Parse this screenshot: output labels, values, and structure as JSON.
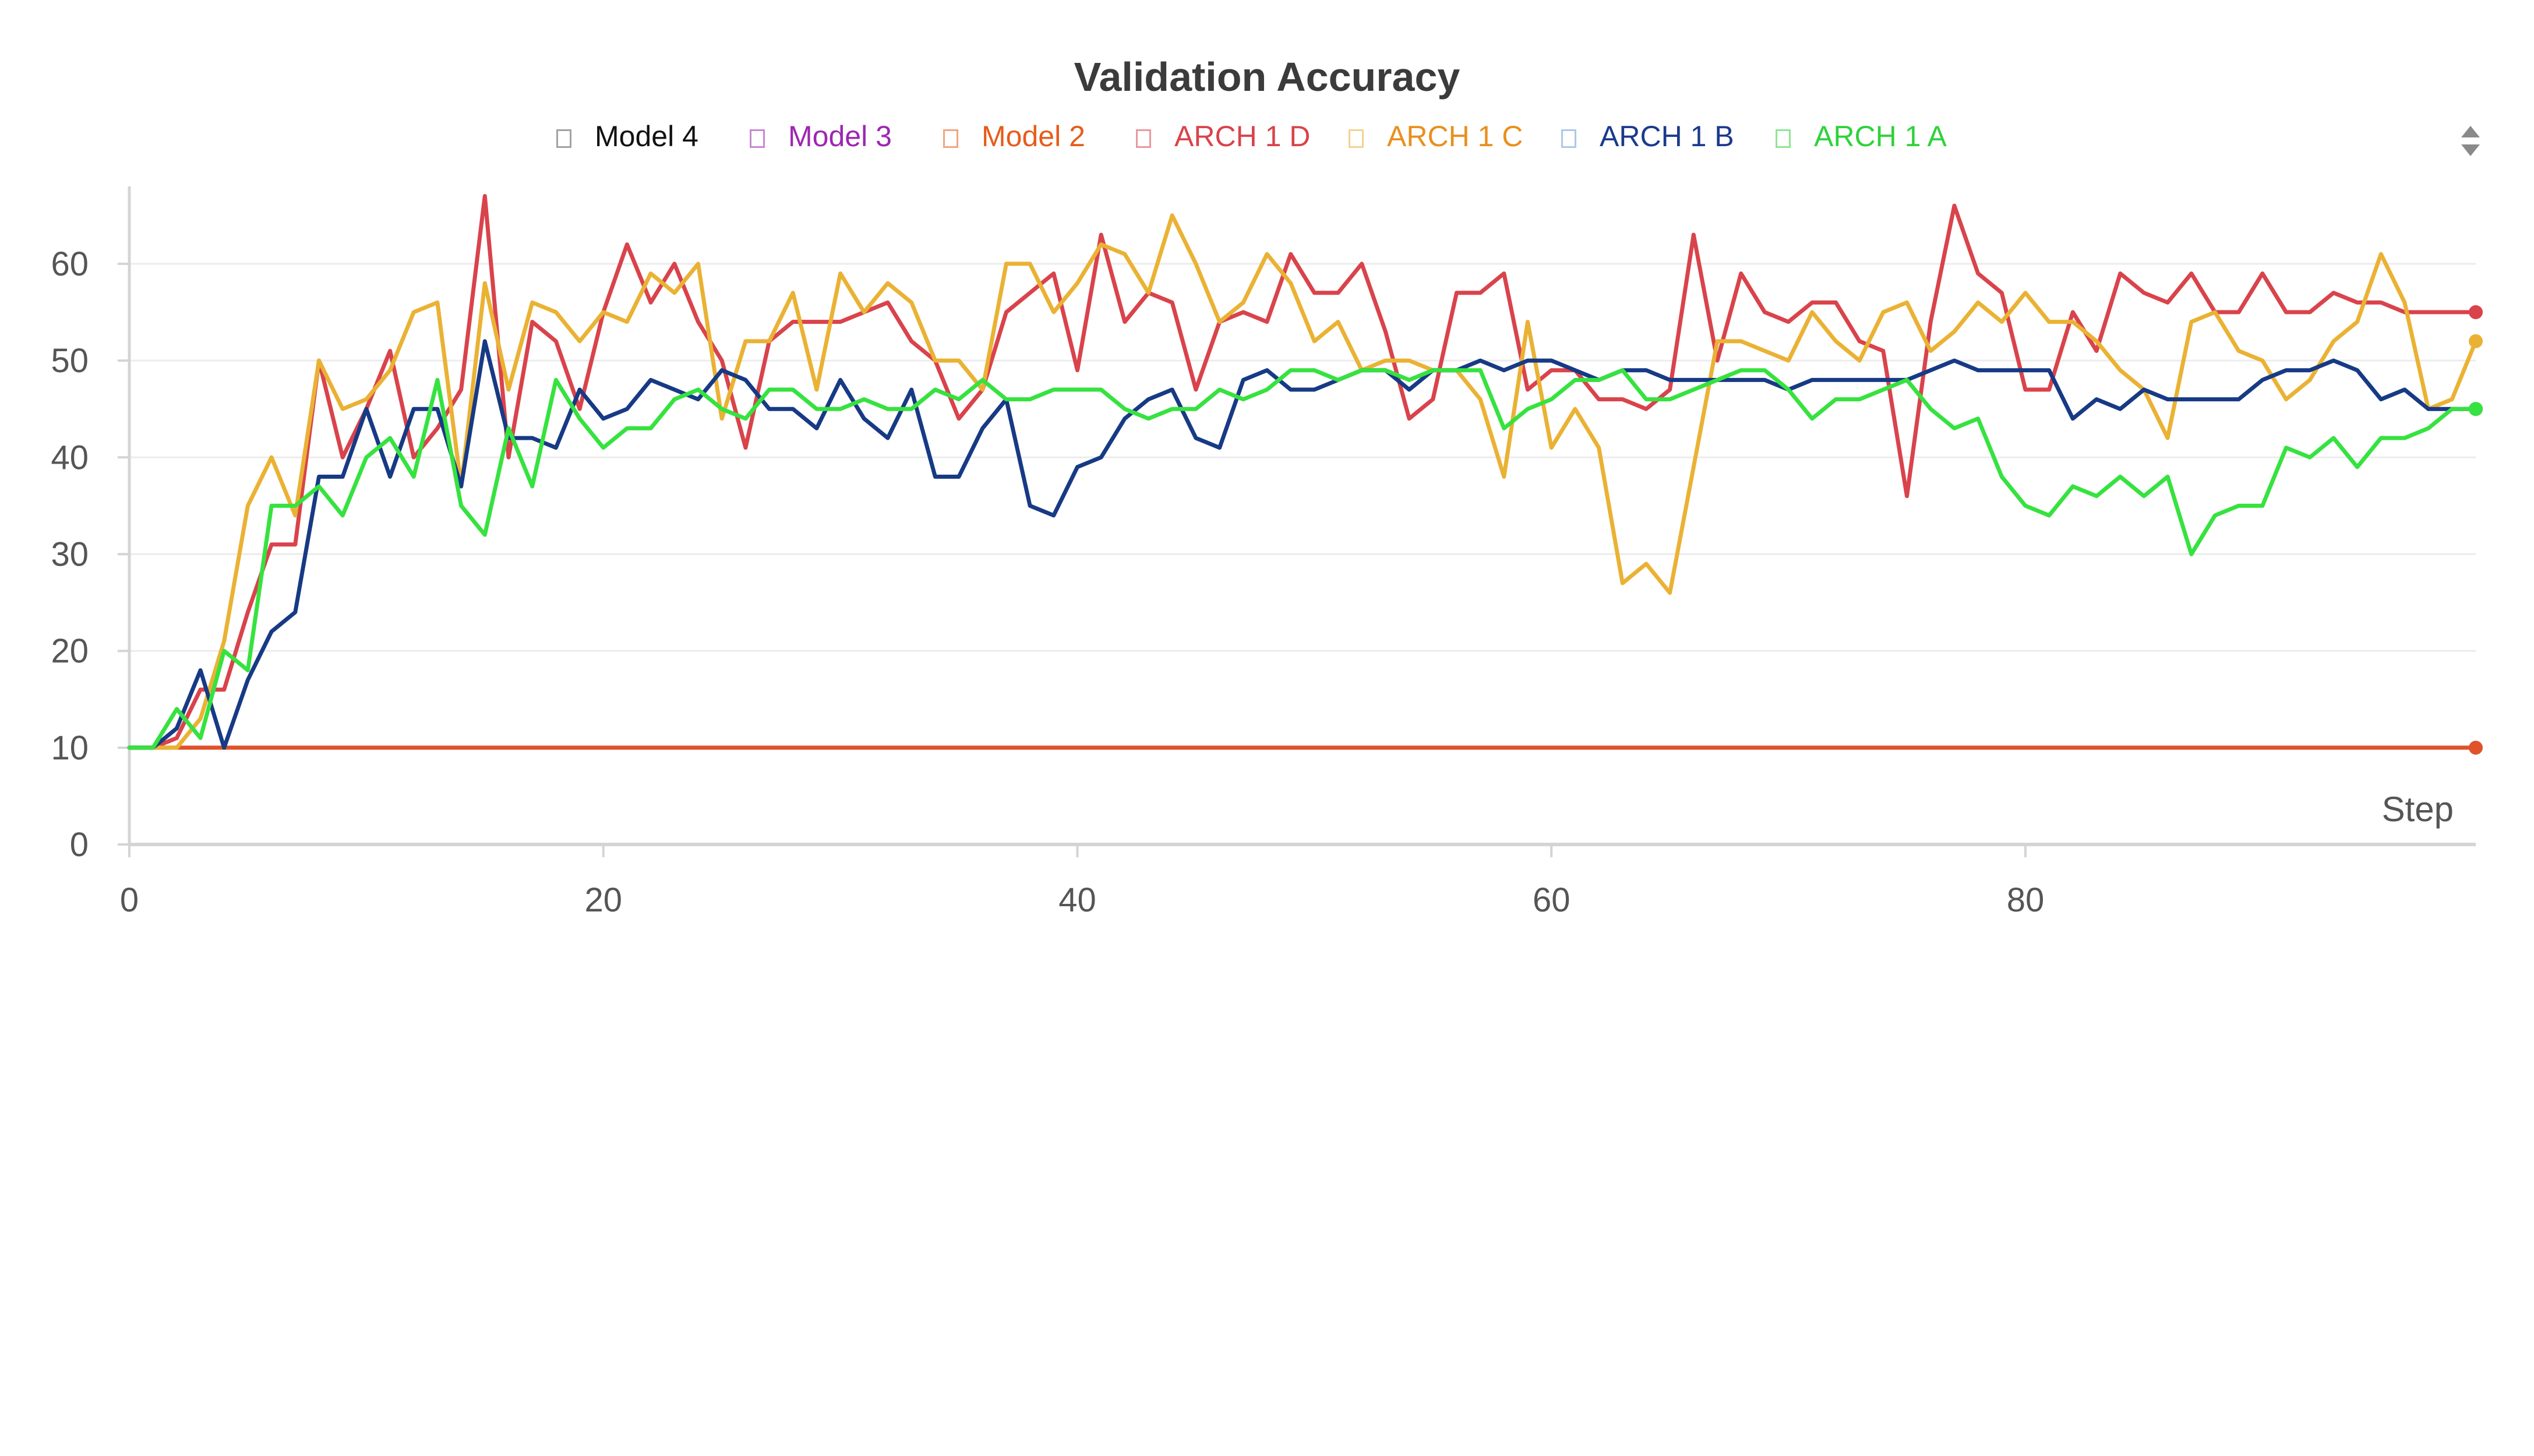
{
  "chart_data": {
    "type": "line",
    "title": "Validation Accuracy",
    "xlabel": "Step",
    "ylabel": "",
    "xlim": [
      0,
      99
    ],
    "ylim": [
      0,
      68
    ],
    "x_ticks": [
      0,
      20,
      40,
      60,
      80
    ],
    "y_ticks": [
      0,
      10,
      20,
      30,
      40,
      50,
      60
    ],
    "grid": true,
    "legend_placement": "top-center",
    "legend": [
      {
        "name": "Model 4",
        "color": "#111111"
      },
      {
        "name": "Model 3",
        "color": "#9c27b0"
      },
      {
        "name": "Model 2",
        "color": "#e65c1a"
      },
      {
        "name": "ARCH 1 D",
        "color": "#d9434b"
      },
      {
        "name": "ARCH 1 C",
        "color": "#e8901e"
      },
      {
        "name": "ARCH 1 B",
        "color": "#1a3a8c"
      },
      {
        "name": "ARCH 1 A",
        "color": "#2fd23a"
      }
    ],
    "series": [
      {
        "name": "Model 2",
        "color": "#e0522a",
        "x": [
          0,
          99
        ],
        "y": [
          10,
          10
        ]
      },
      {
        "name": "ARCH 1 D",
        "color": "#d9434b",
        "x": [
          0,
          1,
          2,
          3,
          4,
          5,
          6,
          7,
          8,
          9,
          10,
          11,
          12,
          13,
          14,
          15,
          16,
          17,
          18,
          19,
          20,
          21,
          22,
          23,
          24,
          25,
          26,
          27,
          28,
          29,
          30,
          31,
          32,
          33,
          34,
          35,
          36,
          37,
          38,
          39,
          40,
          41,
          42,
          43,
          44,
          45,
          46,
          47,
          48,
          49,
          50,
          51,
          52,
          53,
          54,
          55,
          56,
          57,
          58,
          59,
          60,
          61,
          62,
          63,
          64,
          65,
          66,
          67,
          68,
          69,
          70,
          71,
          72,
          73,
          74,
          75,
          76,
          77,
          78,
          79,
          80,
          81,
          82,
          83,
          84,
          85,
          86,
          87,
          88,
          89,
          90,
          91,
          92,
          93,
          94,
          95,
          96,
          97,
          98,
          99
        ],
        "y": [
          10,
          10,
          11,
          16,
          16,
          24,
          31,
          31,
          50,
          40,
          45,
          51,
          40,
          43,
          47,
          67,
          40,
          54,
          52,
          45,
          55,
          62,
          56,
          60,
          54,
          50,
          41,
          52,
          54,
          54,
          54,
          55,
          56,
          52,
          50,
          44,
          47,
          55,
          57,
          59,
          49,
          63,
          54,
          57,
          56,
          47,
          54,
          55,
          54,
          61,
          57,
          57,
          60,
          53,
          44,
          46,
          57,
          57,
          59,
          47,
          49,
          49,
          46,
          46,
          45,
          47,
          63,
          50,
          59,
          55,
          54,
          56,
          56,
          52,
          51,
          36,
          54,
          66,
          59,
          57,
          47,
          47,
          55,
          51,
          59,
          57,
          56,
          59,
          55,
          55,
          59,
          55,
          55,
          57,
          56,
          56,
          55,
          55,
          55,
          55
        ]
      },
      {
        "name": "ARCH 1 C",
        "color": "#eab234",
        "x": [
          0,
          1,
          2,
          3,
          4,
          5,
          6,
          7,
          8,
          9,
          10,
          11,
          12,
          13,
          14,
          15,
          16,
          17,
          18,
          19,
          20,
          21,
          22,
          23,
          24,
          25,
          26,
          27,
          28,
          29,
          30,
          31,
          32,
          33,
          34,
          35,
          36,
          37,
          38,
          39,
          40,
          41,
          42,
          43,
          44,
          45,
          46,
          47,
          48,
          49,
          50,
          51,
          52,
          53,
          54,
          55,
          56,
          57,
          58,
          59,
          60,
          61,
          62,
          63,
          64,
          65,
          66,
          67,
          68,
          69,
          70,
          71,
          72,
          73,
          74,
          75,
          76,
          77,
          78,
          79,
          80,
          81,
          82,
          83,
          84,
          85,
          86,
          87,
          88,
          89,
          90,
          91,
          92,
          93,
          94,
          95,
          96,
          97,
          98,
          99
        ],
        "y": [
          10,
          10,
          10,
          13,
          21,
          35,
          40,
          34,
          50,
          45,
          46,
          49,
          55,
          56,
          37,
          58,
          47,
          56,
          55,
          52,
          55,
          54,
          59,
          57,
          60,
          44,
          52,
          52,
          57,
          47,
          59,
          55,
          58,
          56,
          50,
          50,
          47,
          60,
          60,
          55,
          58,
          62,
          61,
          57,
          65,
          60,
          54,
          56,
          61,
          58,
          52,
          54,
          49,
          50,
          50,
          49,
          49,
          46,
          38,
          54,
          41,
          45,
          41,
          27,
          29,
          26,
          39,
          52,
          52,
          51,
          50,
          55,
          52,
          50,
          55,
          56,
          51,
          53,
          56,
          54,
          57,
          54,
          54,
          52,
          49,
          47,
          42,
          54,
          55,
          51,
          50,
          46,
          48,
          52,
          54,
          61,
          56,
          45,
          46,
          52
        ]
      },
      {
        "name": "ARCH 1 B",
        "color": "#173a85",
        "x": [
          0,
          1,
          2,
          3,
          4,
          5,
          6,
          7,
          8,
          9,
          10,
          11,
          12,
          13,
          14,
          15,
          16,
          17,
          18,
          19,
          20,
          21,
          22,
          23,
          24,
          25,
          26,
          27,
          28,
          29,
          30,
          31,
          32,
          33,
          34,
          35,
          36,
          37,
          38,
          39,
          40,
          41,
          42,
          43,
          44,
          45,
          46,
          47,
          48,
          49,
          50,
          51,
          52,
          53,
          54,
          55,
          56,
          57,
          58,
          59,
          60,
          61,
          62,
          63,
          64,
          65,
          66,
          67,
          68,
          69,
          70,
          71,
          72,
          73,
          74,
          75,
          76,
          77,
          78,
          79,
          80,
          81,
          82,
          83,
          84,
          85,
          86,
          87,
          88,
          89,
          90,
          91,
          92,
          93,
          94,
          95,
          96,
          97,
          98,
          99
        ],
        "y": [
          10,
          10,
          12,
          18,
          10,
          17,
          22,
          24,
          38,
          38,
          45,
          38,
          45,
          45,
          37,
          52,
          42,
          42,
          41,
          47,
          44,
          45,
          48,
          47,
          46,
          49,
          48,
          45,
          45,
          43,
          48,
          44,
          42,
          47,
          38,
          38,
          43,
          46,
          35,
          34,
          39,
          40,
          44,
          46,
          47,
          42,
          41,
          48,
          49,
          47,
          47,
          48,
          49,
          49,
          47,
          49,
          49,
          50,
          49,
          50,
          50,
          49,
          48,
          49,
          49,
          48,
          48,
          48,
          48,
          48,
          47,
          48,
          48,
          48,
          48,
          48,
          49,
          50,
          49,
          49,
          49,
          49,
          44,
          46,
          45,
          47,
          46,
          46,
          46,
          46,
          48,
          49,
          49,
          50,
          49,
          46,
          47,
          45,
          45,
          45
        ]
      },
      {
        "name": "ARCH 1 A",
        "color": "#36e23f",
        "x": [
          0,
          1,
          2,
          3,
          4,
          5,
          6,
          7,
          8,
          9,
          10,
          11,
          12,
          13,
          14,
          15,
          16,
          17,
          18,
          19,
          20,
          21,
          22,
          23,
          24,
          25,
          26,
          27,
          28,
          29,
          30,
          31,
          32,
          33,
          34,
          35,
          36,
          37,
          38,
          39,
          40,
          41,
          42,
          43,
          44,
          45,
          46,
          47,
          48,
          49,
          50,
          51,
          52,
          53,
          54,
          55,
          56,
          57,
          58,
          59,
          60,
          61,
          62,
          63,
          64,
          65,
          66,
          67,
          68,
          69,
          70,
          71,
          72,
          73,
          74,
          75,
          76,
          77,
          78,
          79,
          80,
          81,
          82,
          83,
          84,
          85,
          86,
          87,
          88,
          89,
          90,
          91,
          92,
          93,
          94,
          95,
          96,
          97,
          98,
          99
        ],
        "y": [
          10,
          10,
          14,
          11,
          20,
          18,
          35,
          35,
          37,
          34,
          40,
          42,
          38,
          48,
          35,
          32,
          43,
          37,
          48,
          44,
          41,
          43,
          43,
          46,
          47,
          45,
          44,
          47,
          47,
          45,
          45,
          46,
          45,
          45,
          47,
          46,
          48,
          46,
          46,
          47,
          47,
          47,
          45,
          44,
          45,
          45,
          47,
          46,
          47,
          49,
          49,
          48,
          49,
          49,
          48,
          49,
          49,
          49,
          43,
          45,
          46,
          48,
          48,
          49,
          46,
          46,
          47,
          48,
          49,
          49,
          47,
          44,
          46,
          46,
          47,
          48,
          45,
          43,
          44,
          38,
          35,
          34,
          37,
          36,
          38,
          36,
          38,
          30,
          34,
          35,
          35,
          41,
          40,
          42,
          39,
          42,
          42,
          43,
          45,
          45
        ]
      }
    ]
  },
  "ui": {
    "sort_icon": "sort-toggle-icon"
  }
}
